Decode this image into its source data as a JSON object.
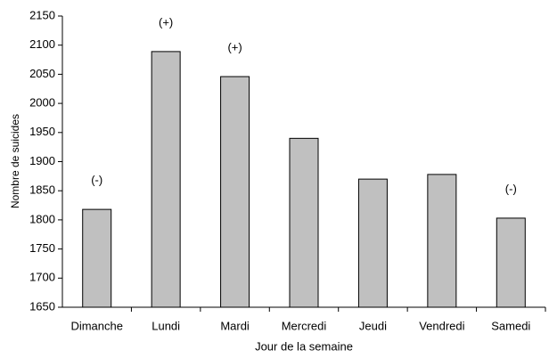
{
  "chart_data": {
    "type": "bar",
    "x_label": "Jour de la semaine",
    "y_label": "Nombre de suicides",
    "categories": [
      "Dimanche",
      "Lundi",
      "Mardi",
      "Mercredi",
      "Jeudi",
      "Vendredi",
      "Samedi"
    ],
    "values": [
      1818,
      2089,
      2046,
      1940,
      1870,
      1878,
      1803
    ],
    "bar_labels": [
      "(-)",
      "(+)",
      "(+)",
      null,
      null,
      null,
      "(-)"
    ],
    "color": "#c0c0c0",
    "ylim": [
      1650,
      2150
    ],
    "yticks": [
      1650,
      1700,
      1750,
      1800,
      1850,
      1900,
      1950,
      2000,
      2050,
      2100,
      2150
    ],
    "grid": false
  }
}
